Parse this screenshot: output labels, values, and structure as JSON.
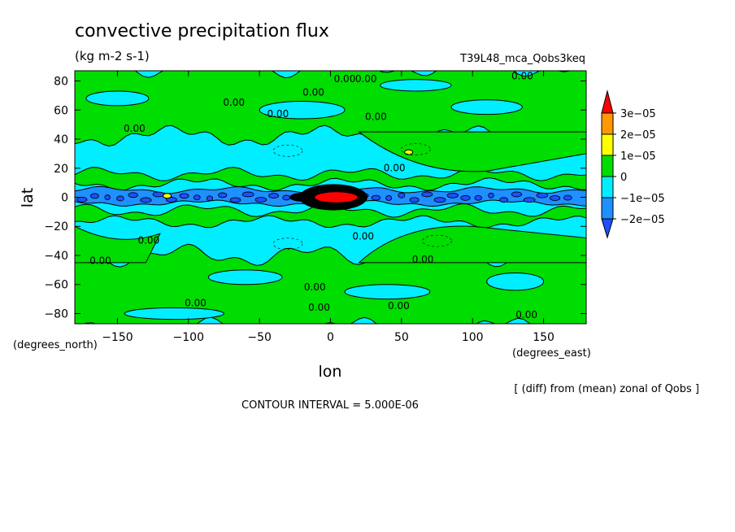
{
  "chart_data": {
    "type": "heatmap",
    "title": "convective precipitation flux",
    "units": "(kg m-2 s-1)",
    "run_label": "T39L48_mca_Qobs3keq",
    "xlabel": "lon",
    "ylabel": "lat",
    "x_units": "(degrees_east)",
    "y_units": "(degrees_north)",
    "xlim": [
      -180,
      180
    ],
    "ylim": [
      -87,
      87
    ],
    "x_ticks": [
      -150,
      -100,
      -50,
      0,
      50,
      100,
      150
    ],
    "y_ticks": [
      -80,
      -60,
      -40,
      -20,
      0,
      20,
      40,
      60,
      80
    ],
    "x_tick_labels": [
      "−150",
      "−100",
      "−50",
      "0",
      "50",
      "100",
      "150"
    ],
    "y_tick_labels": [
      "−80",
      "−60",
      "−40",
      "−20",
      "0",
      "20",
      "40",
      "60",
      "80"
    ],
    "colorbar": {
      "levels": [
        -2.5e-05,
        -2e-05,
        -1e-05,
        0,
        1e-05,
        2e-05,
        3e-05
      ],
      "labels": [
        "3e−05",
        "2e−05",
        "1e−05",
        "0",
        "−1e−05",
        "−2e−05"
      ],
      "colors": [
        "#ff0000",
        "#ff9900",
        "#ffff00",
        "#00dd00",
        "#00eeff",
        "#1e90ff",
        "#1e50ff"
      ]
    },
    "regions": [
      {
        "band": "north-polar",
        "lat_range": [
          40,
          87
        ],
        "value_class": "0 to 1e-05",
        "color": "#00dd00"
      },
      {
        "band": "north-subtropics",
        "lat_range": [
          20,
          45
        ],
        "value_class": "-1e-05 to 0",
        "color": "#00eeff"
      },
      {
        "band": "equatorial",
        "lat_range": [
          -8,
          8
        ],
        "value_class": "-2e-05 to -1e-05",
        "color": "#1e90ff"
      },
      {
        "band": "maritime-continent",
        "lon_range": [
          -25,
          25
        ],
        "lat_range": [
          -8,
          8
        ],
        "value_class": "> 3e-05",
        "color": "#ff0000"
      },
      {
        "band": "south-subtropics",
        "lat_range": [
          -45,
          -20
        ],
        "value_class": "-1e-05 to 0",
        "color": "#00eeff"
      },
      {
        "band": "south-polar",
        "lat_range": [
          -87,
          -40
        ],
        "value_class": "0 to 1e-05",
        "color": "#00dd00"
      }
    ],
    "contour_labels": [
      {
        "lon": 10,
        "lat": 81,
        "text": "0.00"
      },
      {
        "lon": 25,
        "lat": 81,
        "text": "0.00"
      },
      {
        "lon": 135,
        "lat": 83,
        "text": "0.00"
      },
      {
        "lon": -12,
        "lat": 72,
        "text": "0.00"
      },
      {
        "lon": -68,
        "lat": 65,
        "text": "0.00"
      },
      {
        "lon": -37,
        "lat": 57,
        "text": "0.00"
      },
      {
        "lon": 32,
        "lat": 55,
        "text": "0.00"
      },
      {
        "lon": -138,
        "lat": 47,
        "text": "0.00"
      },
      {
        "lon": 45,
        "lat": 20,
        "text": "0.00"
      },
      {
        "lon": -128,
        "lat": -30,
        "text": "0.00"
      },
      {
        "lon": 23,
        "lat": -27,
        "text": "0.00"
      },
      {
        "lon": 65,
        "lat": -43,
        "text": "0.00"
      },
      {
        "lon": -162,
        "lat": -44,
        "text": "0.00"
      },
      {
        "lon": -11,
        "lat": -62,
        "text": "0.00"
      },
      {
        "lon": -95,
        "lat": -73,
        "text": "0.00"
      },
      {
        "lon": -8,
        "lat": -76,
        "text": "0.00"
      },
      {
        "lon": 48,
        "lat": -75,
        "text": "0.00"
      },
      {
        "lon": 138,
        "lat": -81,
        "text": "0.00"
      }
    ]
  },
  "footer": {
    "diff_note": "[ (diff) from (mean) zonal of Qobs ]",
    "contour_interval": "CONTOUR INTERVAL = 5.000E-06"
  }
}
